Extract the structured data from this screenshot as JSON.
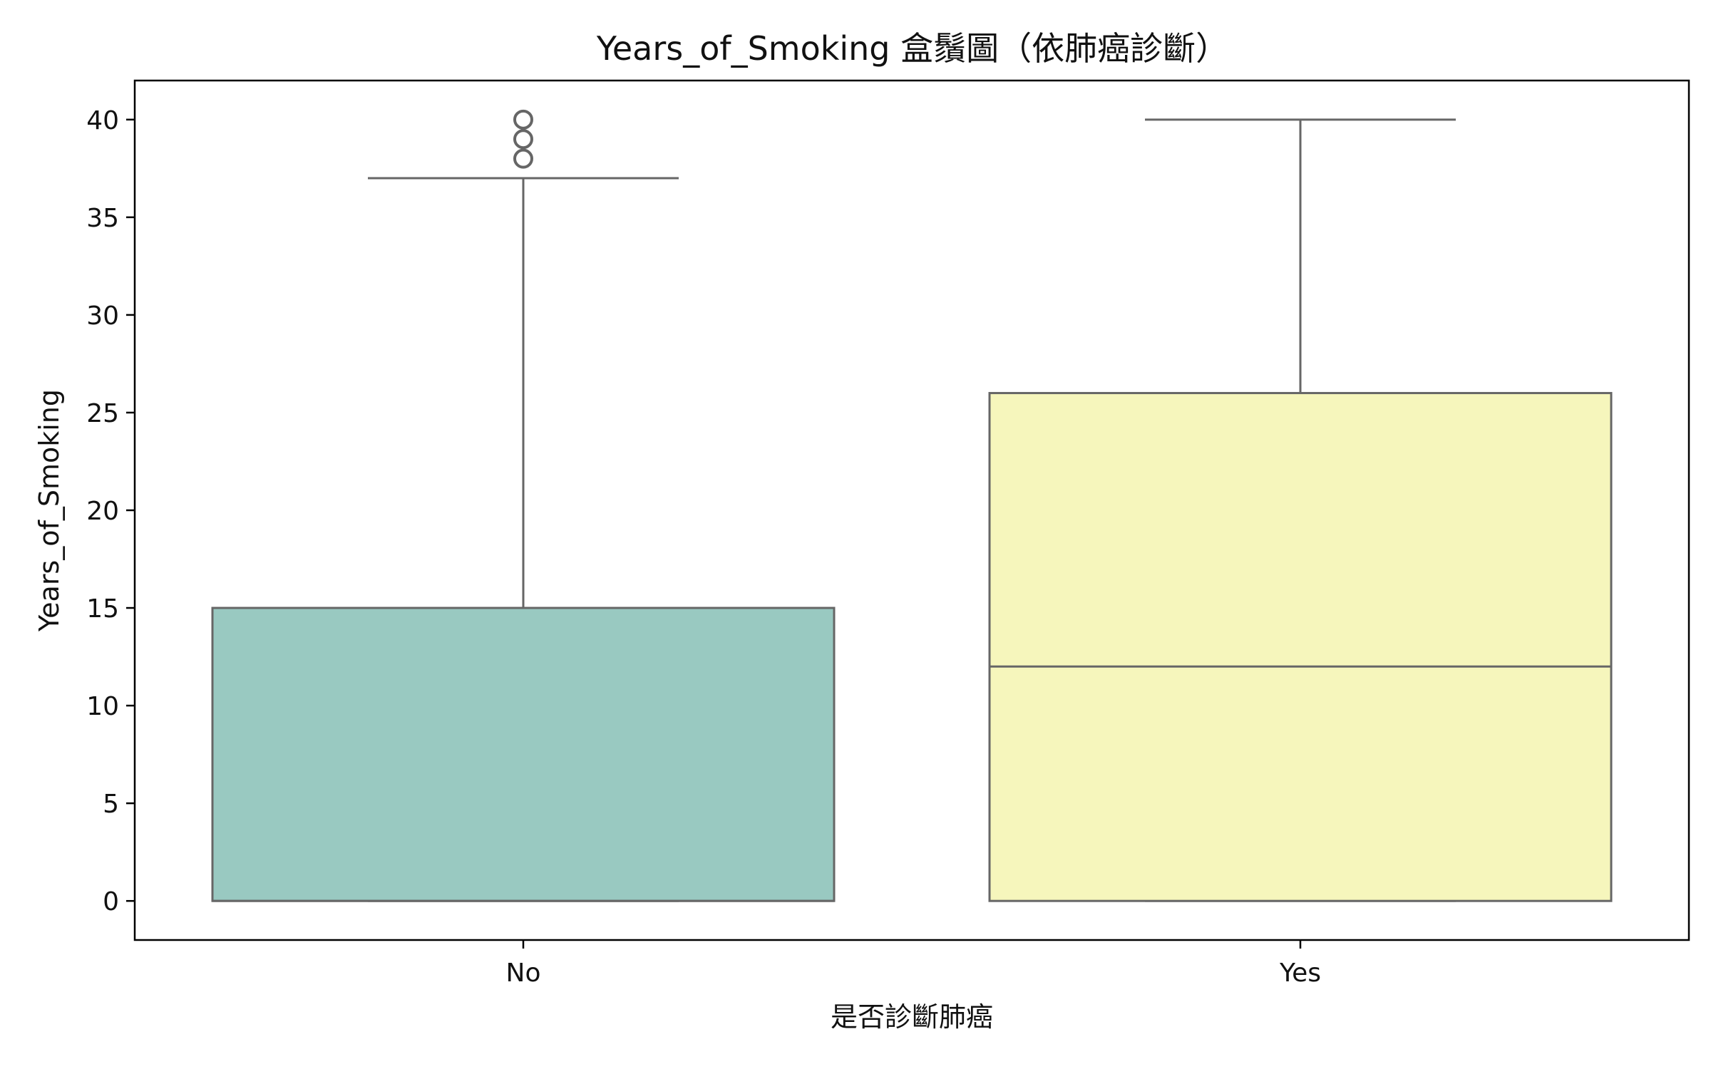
{
  "chart_data": {
    "type": "box",
    "title": "Years_of_Smoking 盒鬚圖（依肺癌診斷）",
    "xlabel": "是否診斷肺癌",
    "ylabel": "Years_of_Smoking",
    "categories": [
      "No",
      "Yes"
    ],
    "ylim": [
      -2,
      42
    ],
    "yticks": [
      0,
      5,
      10,
      15,
      20,
      25,
      30,
      35,
      40
    ],
    "grid": false,
    "boxes": [
      {
        "category": "No",
        "whisker_low": 0,
        "q1": 0,
        "median": 0,
        "q3": 15,
        "whisker_high": 37,
        "outliers": [
          38,
          39,
          40
        ],
        "color": "#99c9c1"
      },
      {
        "category": "Yes",
        "whisker_low": 0,
        "q1": 0,
        "median": 12,
        "q3": 26,
        "whisker_high": 40,
        "outliers": [],
        "color": "#f6f6bc"
      }
    ],
    "line_color": "#666666"
  }
}
